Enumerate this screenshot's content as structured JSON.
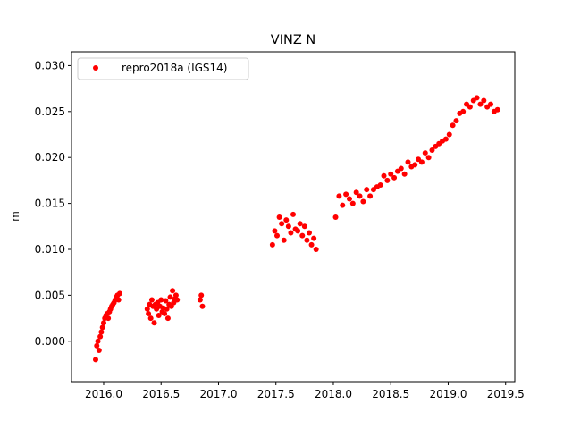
{
  "chart_data": {
    "type": "scatter",
    "title": "VINZ N",
    "xlabel": "",
    "ylabel": "m",
    "xlim": [
      2015.72,
      2019.58
    ],
    "ylim": [
      -0.0044,
      0.0315
    ],
    "xticks": [
      2016.0,
      2016.5,
      2017.0,
      2017.5,
      2018.0,
      2018.5,
      2019.0,
      2019.5
    ],
    "xtick_labels": [
      "2016.0",
      "2016.5",
      "2017.0",
      "2017.5",
      "2018.0",
      "2018.5",
      "2019.0",
      "2019.5"
    ],
    "yticks": [
      0.0,
      0.005,
      0.01,
      0.015,
      0.02,
      0.025,
      0.03
    ],
    "ytick_labels": [
      "0.000",
      "0.005",
      "0.010",
      "0.015",
      "0.020",
      "0.025",
      "0.030"
    ],
    "grid": false,
    "legend_position": "top-left",
    "marker_color": "#ff0000",
    "series": [
      {
        "name": "repro2018a (IGS14)",
        "x": [
          2015.93,
          2015.94,
          2015.95,
          2015.96,
          2015.97,
          2015.98,
          2015.99,
          2016.0,
          2016.01,
          2016.02,
          2016.03,
          2016.04,
          2016.05,
          2016.06,
          2016.07,
          2016.08,
          2016.09,
          2016.1,
          2016.11,
          2016.12,
          2016.13,
          2016.14,
          2016.38,
          2016.39,
          2016.4,
          2016.41,
          2016.42,
          2016.43,
          2016.44,
          2016.45,
          2016.46,
          2016.47,
          2016.48,
          2016.49,
          2016.5,
          2016.51,
          2016.52,
          2016.53,
          2016.54,
          2016.55,
          2016.56,
          2016.57,
          2016.58,
          2016.59,
          2016.6,
          2016.61,
          2016.62,
          2016.63,
          2016.64,
          2016.84,
          2016.85,
          2016.86,
          2017.47,
          2017.49,
          2017.51,
          2017.53,
          2017.55,
          2017.57,
          2017.59,
          2017.61,
          2017.63,
          2017.65,
          2017.67,
          2017.69,
          2017.71,
          2017.73,
          2017.75,
          2017.77,
          2017.79,
          2017.81,
          2017.83,
          2017.85,
          2018.02,
          2018.05,
          2018.08,
          2018.11,
          2018.14,
          2018.17,
          2018.2,
          2018.23,
          2018.26,
          2018.29,
          2018.32,
          2018.35,
          2018.38,
          2018.41,
          2018.44,
          2018.47,
          2018.5,
          2018.53,
          2018.56,
          2018.59,
          2018.62,
          2018.65,
          2018.68,
          2018.71,
          2018.74,
          2018.77,
          2018.8,
          2018.83,
          2018.86,
          2018.89,
          2018.92,
          2018.95,
          2018.98,
          2019.01,
          2019.04,
          2019.07,
          2019.1,
          2019.13,
          2019.16,
          2019.19,
          2019.22,
          2019.25,
          2019.28,
          2019.31,
          2019.34,
          2019.37,
          2019.4,
          2019.43
        ],
        "y": [
          -0.002,
          -0.0005,
          0.0,
          -0.001,
          0.0005,
          0.001,
          0.0015,
          0.002,
          0.0025,
          0.0028,
          0.003,
          0.0025,
          0.0032,
          0.0035,
          0.0038,
          0.004,
          0.0042,
          0.0045,
          0.0048,
          0.005,
          0.0045,
          0.0052,
          0.0035,
          0.003,
          0.004,
          0.0025,
          0.0045,
          0.0038,
          0.002,
          0.004,
          0.0035,
          0.0042,
          0.0028,
          0.0038,
          0.0045,
          0.0032,
          0.0036,
          0.003,
          0.0044,
          0.0035,
          0.0025,
          0.004,
          0.0048,
          0.0038,
          0.0055,
          0.0042,
          0.0046,
          0.005,
          0.0045,
          0.0045,
          0.005,
          0.0038,
          0.0105,
          0.012,
          0.0115,
          0.0135,
          0.0128,
          0.011,
          0.0132,
          0.0125,
          0.0118,
          0.0138,
          0.0122,
          0.012,
          0.0128,
          0.0115,
          0.0125,
          0.011,
          0.0118,
          0.0105,
          0.0112,
          0.01,
          0.0135,
          0.0158,
          0.0148,
          0.016,
          0.0155,
          0.015,
          0.0162,
          0.0158,
          0.0152,
          0.0165,
          0.0158,
          0.0165,
          0.0168,
          0.017,
          0.018,
          0.0175,
          0.0182,
          0.0178,
          0.0185,
          0.0188,
          0.0182,
          0.0195,
          0.019,
          0.0192,
          0.0198,
          0.0195,
          0.0205,
          0.02,
          0.0208,
          0.0212,
          0.0215,
          0.0218,
          0.022,
          0.0225,
          0.0235,
          0.024,
          0.0248,
          0.025,
          0.0258,
          0.0255,
          0.0262,
          0.0265,
          0.0258,
          0.0262,
          0.0255,
          0.0258,
          0.025,
          0.0252
        ]
      }
    ]
  }
}
